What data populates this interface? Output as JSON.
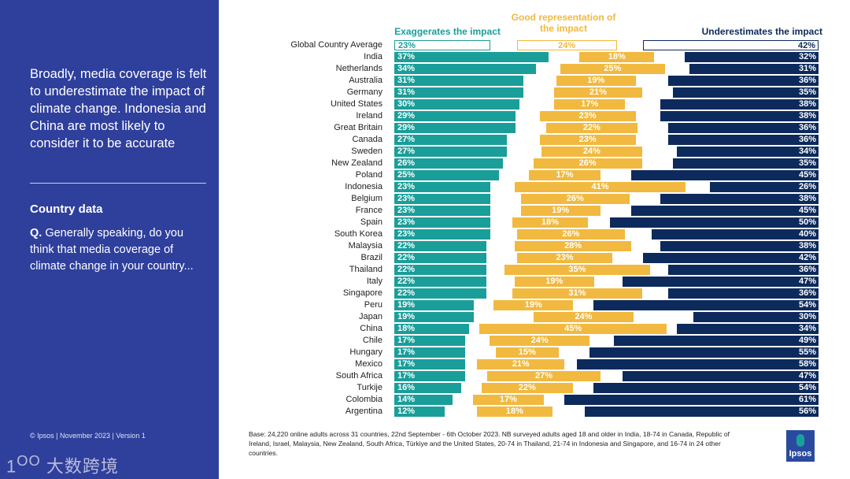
{
  "left_panel": {
    "headline": "Broadly, media coverage is felt to underestimate the impact of climate change. Indonesia and China are most likely to consider it to be accurate",
    "subheading": "Country data",
    "question_prefix": "Q.",
    "question": "Generally speaking, do you think that media coverage of climate change in your country...",
    "footer": "© Ipsos | November 2023 | Version 1",
    "watermark": "大数跨境"
  },
  "base_note": "Base: 24,220 online adults across 31 countries, 22nd September - 6th October 2023. NB surveyed adults aged 18 and older in India, 18-74 in Canada, Republic of Ireland, Israel, Malaysia, New Zealand, South Africa, Türkiye and the United States, 20-74 in Thailand, 21-74 in Indonesia and Singapore, and 16-74 in 24 other countries.",
  "logo": "Ipsos",
  "colors": {
    "exaggerates": "#1a9e9a",
    "good": "#f1b93f",
    "underestimates": "#0d2a5c",
    "panel": "#2f3f9c"
  },
  "chart_data": {
    "type": "bar",
    "orientation": "horizontal",
    "categories": [
      "Global Country Average",
      "India",
      "Netherlands",
      "Australia",
      "Germany",
      "United States",
      "Ireland",
      "Great Britain",
      "Canada",
      "Sweden",
      "New Zealand",
      "Poland",
      "Indonesia",
      "Belgium",
      "France",
      "Spain",
      "South Korea",
      "Malaysia",
      "Brazil",
      "Thailand",
      "Italy",
      "Singapore",
      "Peru",
      "Japan",
      "China",
      "Chile",
      "Hungary",
      "Mexico",
      "South Africa",
      "Turkije",
      "Colombia",
      "Argentina"
    ],
    "series": [
      {
        "name": "Exaggerates the impact",
        "values": [
          23,
          37,
          34,
          31,
          31,
          30,
          29,
          29,
          27,
          27,
          26,
          25,
          23,
          23,
          23,
          23,
          23,
          22,
          22,
          22,
          22,
          22,
          19,
          19,
          18,
          17,
          17,
          17,
          17,
          16,
          14,
          12
        ]
      },
      {
        "name": "Good representation of the impact",
        "values": [
          24,
          18,
          25,
          19,
          21,
          17,
          23,
          22,
          23,
          24,
          26,
          17,
          41,
          26,
          19,
          18,
          26,
          28,
          23,
          35,
          19,
          31,
          19,
          24,
          45,
          24,
          15,
          21,
          27,
          22,
          17,
          18
        ]
      },
      {
        "name": "Underestimates the impact",
        "values": [
          42,
          32,
          31,
          36,
          35,
          38,
          38,
          36,
          36,
          34,
          35,
          45,
          26,
          38,
          45,
          50,
          40,
          38,
          42,
          36,
          47,
          36,
          54,
          30,
          34,
          49,
          55,
          58,
          47,
          54,
          61,
          56
        ]
      }
    ],
    "unit": "%"
  }
}
